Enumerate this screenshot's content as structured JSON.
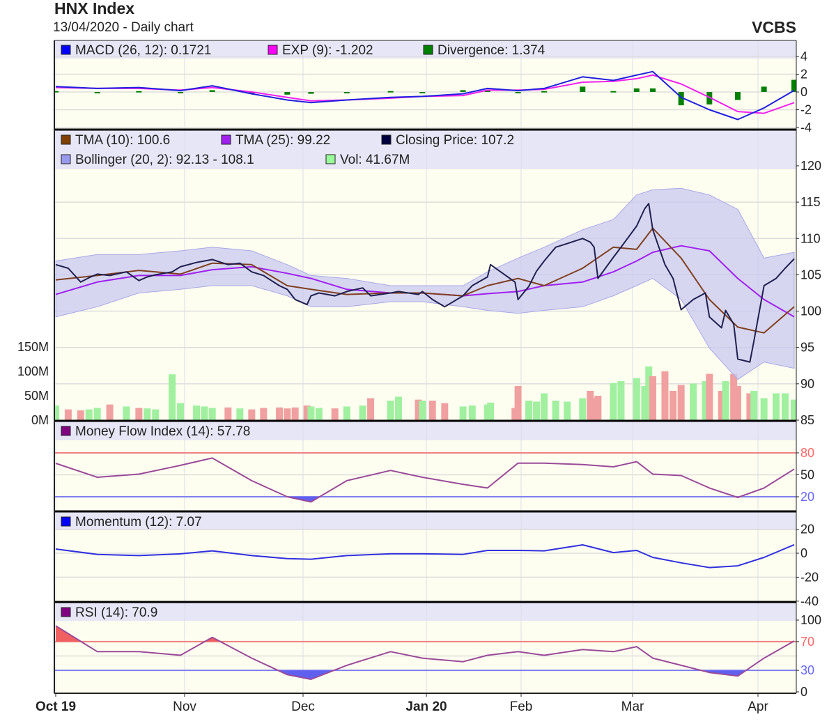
{
  "header": {
    "title": "HNX Index",
    "subtitle": "13/04/2020 - Daily chart",
    "brand": "VCBS"
  },
  "chart_data": {
    "type": "line",
    "x_axis": {
      "ticks": [
        {
          "label": "Oct 19",
          "date": "2019-10-01",
          "bold": true
        },
        {
          "label": "Nov",
          "date": "2019-11-01",
          "bold": false
        },
        {
          "label": "Dec",
          "date": "2019-12-01",
          "bold": false
        },
        {
          "label": "Jan 20",
          "date": "2020-01-01",
          "bold": true
        },
        {
          "label": "Feb",
          "date": "2020-02-01",
          "bold": false
        },
        {
          "label": "Mar",
          "date": "2020-03-01",
          "bold": false
        },
        {
          "label": "Apr",
          "date": "2020-04-01",
          "bold": false
        }
      ]
    },
    "grid": true,
    "indicator_dates": [
      "2019-10-01",
      "2019-10-11",
      "2019-10-21",
      "2019-10-31",
      "2019-11-08",
      "2019-11-18",
      "2019-11-27",
      "2019-12-03",
      "2019-12-12",
      "2019-12-23",
      "2019-12-31",
      "2020-01-13",
      "2020-01-21",
      "2020-01-31",
      "2020-02-07",
      "2020-02-17",
      "2020-02-25",
      "2020-03-02",
      "2020-03-06",
      "2020-03-13",
      "2020-03-20",
      "2020-03-27",
      "2020-04-03",
      "2020-04-13"
    ],
    "macd_panel": {
      "legend": [
        {
          "label": "MACD (26, 12): 0.1721",
          "color": "#0000ff"
        },
        {
          "label": "EXP (9): -1.202",
          "color": "#ff00ff"
        },
        {
          "label": "Divergence: 1.374",
          "color": "#008000"
        }
      ],
      "y_ticks": [
        4,
        2,
        0,
        -2,
        -4
      ],
      "macd": [
        0.6,
        0.4,
        0.5,
        0.15,
        0.7,
        -0.2,
        -0.9,
        -1.2,
        -0.9,
        -0.6,
        -0.5,
        -0.2,
        0.4,
        0.15,
        0.4,
        1.7,
        1.3,
        1.9,
        2.3,
        -0.6,
        -2.0,
        -3.1,
        -1.8,
        0.17
      ],
      "exp": [
        0.5,
        0.4,
        0.4,
        0.2,
        0.5,
        0.0,
        -0.6,
        -1.0,
        -0.9,
        -0.7,
        -0.5,
        -0.4,
        0.2,
        0.2,
        0.3,
        1.1,
        1.2,
        1.5,
        1.9,
        0.9,
        -0.6,
        -2.2,
        -2.4,
        -1.2
      ],
      "divergence": [
        0.1,
        0,
        0.1,
        -0.05,
        0.2,
        -0.2,
        -0.3,
        -0.2,
        0,
        0.1,
        0,
        0.2,
        0.2,
        -0.05,
        0.1,
        0.6,
        0.1,
        0.4,
        0.4,
        -1.5,
        -1.4,
        -0.9,
        0.6,
        1.37
      ]
    },
    "price_panel": {
      "legend_row1": [
        {
          "label": "TMA (10): 100.6",
          "color": "#804000"
        },
        {
          "label": "TMA (25): 99.22",
          "color": "#a020f0"
        },
        {
          "label": "Closing Price: 107.2",
          "color": "#000040"
        }
      ],
      "legend_row2": [
        {
          "label": "Bollinger (20, 2): 92.13 - 108.1",
          "color": "#9999ee"
        },
        {
          "label": "Vol: 41.67M",
          "color": "#99ff99"
        }
      ],
      "y_ticks": [
        85,
        90,
        95,
        100,
        105,
        110,
        115,
        120
      ],
      "volume_ticks": [
        {
          "label": "0M",
          "value": 0
        },
        {
          "label": "50M",
          "value": 50
        },
        {
          "label": "100M",
          "value": 100
        },
        {
          "label": "150M",
          "value": 150
        }
      ],
      "dates": [
        "2019-10-01",
        "2019-10-04",
        "2019-10-07",
        "2019-10-09",
        "2019-10-11",
        "2019-10-14",
        "2019-10-18",
        "2019-10-21",
        "2019-10-23",
        "2019-10-25",
        "2019-10-29",
        "2019-10-31",
        "2019-11-04",
        "2019-11-06",
        "2019-11-08",
        "2019-11-12",
        "2019-11-15",
        "2019-11-18",
        "2019-11-21",
        "2019-11-25",
        "2019-11-27",
        "2019-11-29",
        "2019-12-02",
        "2019-12-03",
        "2019-12-05",
        "2019-12-09",
        "2019-12-12",
        "2019-12-16",
        "2019-12-18",
        "2019-12-23",
        "2019-12-25",
        "2019-12-30",
        "2019-12-31",
        "2020-01-03",
        "2020-01-07",
        "2020-01-13",
        "2020-01-16",
        "2020-01-21",
        "2020-01-22",
        "2020-01-30",
        "2020-01-31",
        "2020-02-03",
        "2020-02-05",
        "2020-02-07",
        "2020-02-10",
        "2020-02-13",
        "2020-02-17",
        "2020-02-19",
        "2020-02-20",
        "2020-02-21",
        "2020-02-25",
        "2020-02-27",
        "2020-03-02",
        "2020-03-04",
        "2020-03-05",
        "2020-03-06",
        "2020-03-09",
        "2020-03-11",
        "2020-03-13",
        "2020-03-16",
        "2020-03-19",
        "2020-03-20",
        "2020-03-23",
        "2020-03-24",
        "2020-03-26",
        "2020-03-27",
        "2020-03-30",
        "2020-03-31",
        "2020-04-03",
        "2020-04-07",
        "2020-04-10",
        "2020-04-13"
      ],
      "close": [
        106.4,
        105.9,
        104,
        104.6,
        105.1,
        104.9,
        105.4,
        104.2,
        104.7,
        105,
        105.4,
        106.1,
        106.7,
        106.9,
        107.1,
        106.4,
        106.6,
        105.4,
        104.9,
        103.5,
        103,
        101.6,
        100.9,
        102.1,
        102.5,
        102.1,
        102.7,
        103.2,
        102.1,
        102.5,
        102.7,
        102.3,
        102.7,
        101.6,
        100.6,
        102.1,
        103.5,
        104.7,
        106.4,
        104,
        101.6,
        103.4,
        105.5,
        106.9,
        108.8,
        109.3,
        110,
        109.5,
        108.8,
        104.5,
        107.4,
        108.8,
        111.7,
        114.1,
        114.8,
        111.2,
        106.4,
        104.5,
        100.2,
        101.6,
        102.5,
        99.2,
        97.7,
        100.1,
        98.2,
        93.4,
        93,
        95.9,
        103.5,
        104.5,
        105.9,
        107.2
      ],
      "volume_m": [
        30,
        22,
        20,
        22,
        25,
        32,
        28,
        25,
        24,
        22,
        94,
        35,
        30,
        28,
        25,
        26,
        24,
        22,
        25,
        26,
        24,
        26,
        30,
        28,
        25,
        24,
        28,
        30,
        45,
        40,
        48,
        42,
        40,
        40,
        35,
        28,
        30,
        32,
        36,
        25,
        70,
        40,
        38,
        55,
        40,
        38,
        45,
        60,
        45,
        50,
        76,
        80,
        86,
        70,
        110,
        90,
        100,
        60,
        72,
        75,
        80,
        95,
        60,
        80,
        95,
        70,
        55,
        60,
        45,
        55,
        55,
        42
      ],
      "tma10": [
        104.3,
        104.9,
        105.6,
        105.1,
        106.6,
        106.4,
        103.5,
        103,
        102.3,
        102.5,
        102.5,
        102.1,
        103.5,
        104.5,
        103.5,
        105.9,
        108.8,
        108.5,
        111.4,
        107.3,
        101.6,
        97.8,
        97,
        100.6
      ],
      "tma25": [
        102.3,
        104,
        104.9,
        104.9,
        105.7,
        106.1,
        105.2,
        104.5,
        103,
        102.5,
        102.5,
        102.1,
        102.4,
        102.7,
        103.5,
        104,
        105.4,
        106.9,
        108.1,
        109,
        108.3,
        104.5,
        101.6,
        99.22
      ],
      "bollinger_upper": [
        106.9,
        107.8,
        107.8,
        108.3,
        108.8,
        108.3,
        106.4,
        104.9,
        104.5,
        103.5,
        103.5,
        103.5,
        105.4,
        107.3,
        108.8,
        111.2,
        112.6,
        116,
        116.7,
        116.9,
        116,
        114,
        107.3,
        108.1
      ],
      "bollinger_lower": [
        99.2,
        100.6,
        102.5,
        103,
        103.5,
        103.5,
        102.1,
        100.6,
        100.6,
        101.3,
        101.3,
        100.6,
        100.1,
        99.7,
        100.1,
        100.6,
        102.1,
        103.5,
        104.5,
        101.6,
        94.9,
        90.6,
        93,
        92.13
      ]
    },
    "mfi_panel": {
      "legend": [
        {
          "label": "Money Flow Index (14): 57.78",
          "color": "#800080"
        }
      ],
      "y_ticks": [
        {
          "value": 80,
          "color": "#ff6666"
        },
        {
          "value": 50,
          "color": "#222222"
        },
        {
          "value": 20,
          "color": "#6666ff"
        }
      ],
      "overbought": 80,
      "oversold": 20,
      "values": [
        65.7,
        46.7,
        51,
        63,
        73,
        42,
        20,
        13,
        42,
        56,
        46.7,
        37,
        32,
        66,
        66,
        64,
        61,
        68,
        51,
        49,
        32,
        19,
        32,
        57.78
      ]
    },
    "momentum_panel": {
      "legend": [
        {
          "label": "Momentum (12): 7.07",
          "color": "#0000ff"
        }
      ],
      "y_ticks": [
        20,
        0,
        -20,
        -40
      ],
      "values": [
        3.5,
        -1,
        -2,
        -0.5,
        2,
        -2,
        -4.5,
        -5,
        -2,
        -0.5,
        -0.5,
        -1,
        2.3,
        2.3,
        2,
        7,
        0.5,
        2.3,
        -3.5,
        -8,
        -12,
        -10.5,
        -3.5,
        7.07
      ]
    },
    "rsi_panel": {
      "legend": [
        {
          "label": "RSI (14): 70.9",
          "color": "#800080"
        }
      ],
      "y_ticks": [
        {
          "value": 100,
          "color": "#222222"
        },
        {
          "value": 70,
          "color": "#ff6666"
        },
        {
          "value": 30,
          "color": "#6666ff"
        },
        {
          "value": 0,
          "color": "#222222"
        }
      ],
      "overbought": 70,
      "oversold": 30,
      "values": [
        92,
        56,
        56,
        51,
        76,
        47,
        24,
        17.5,
        37,
        56,
        47,
        42,
        51,
        56,
        51,
        59,
        56,
        63,
        47,
        37,
        27,
        22,
        47,
        70.9
      ]
    },
    "colors": {
      "panel_bg": "#fefef0",
      "legend_band": "#e6e6f6",
      "close": "#202050",
      "tma10": "#804020",
      "tma25": "#a020f0",
      "bollinger": "#c8c8f0",
      "volume_up": "#a0f0a0",
      "volume_down": "#f0a0a0",
      "macd": "#2020e0",
      "exp": "#f020f0",
      "divergence": "#008000",
      "mfi": "#9a4a9a",
      "momentum": "#3030e0",
      "rsi": "#9a4a9a",
      "overbought": "#f08080",
      "oversold": "#8080f0"
    }
  }
}
